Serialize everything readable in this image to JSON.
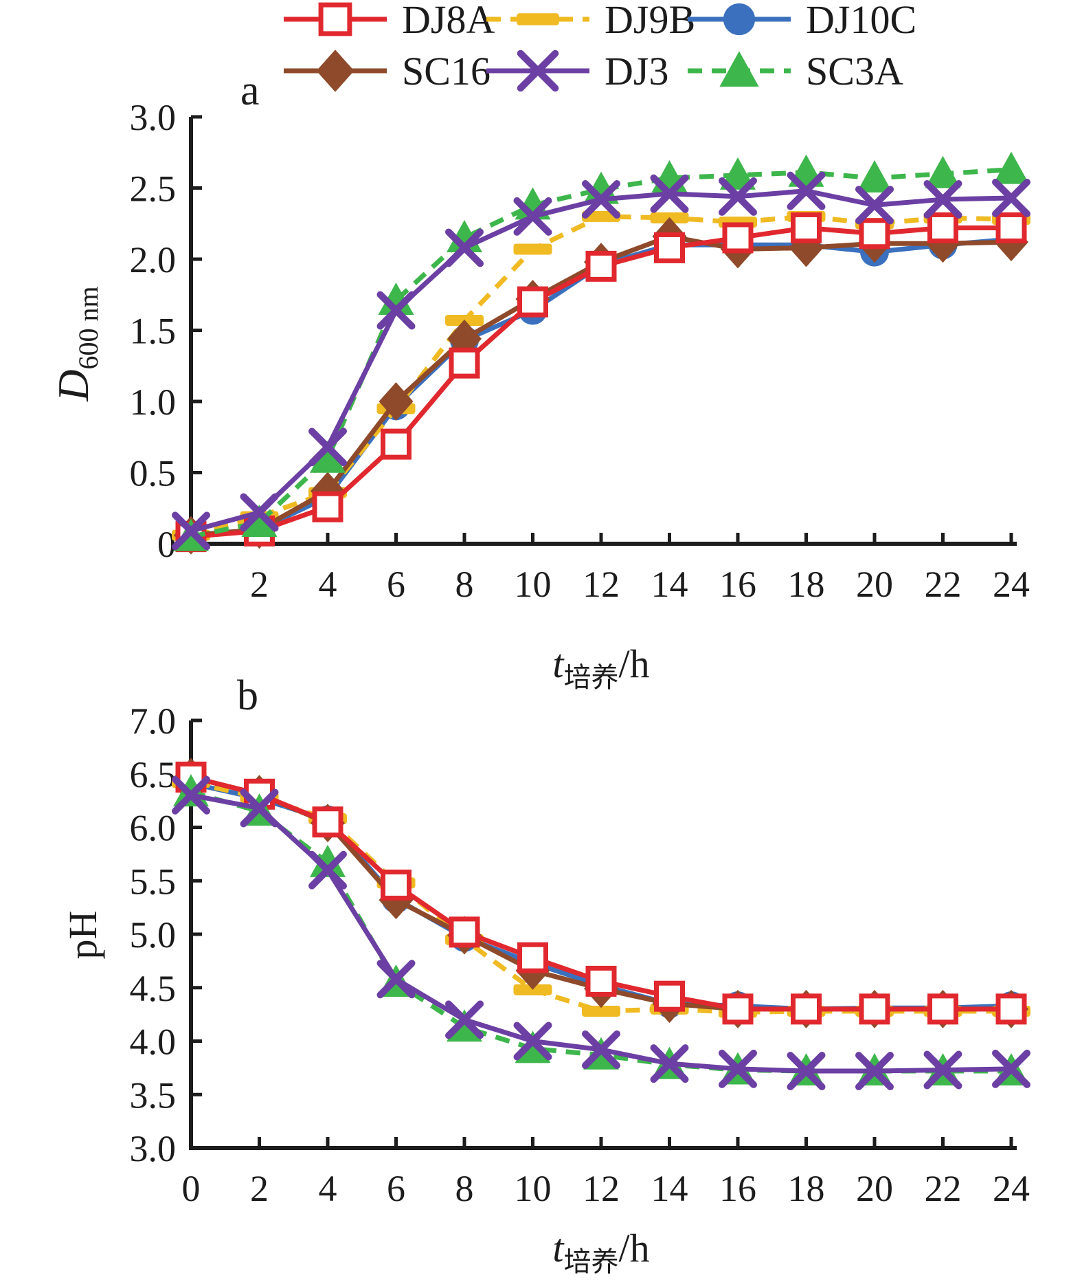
{
  "figure": {
    "panel_a_label": "a",
    "panel_b_label": "b",
    "xlabel_main": "t",
    "xlabel_sub": "培养",
    "xlabel_unit": "/h",
    "ylabel_a_main": "D",
    "ylabel_a_sub": "600 nm",
    "ylabel_b": "pH",
    "text_color": "#1c1c1c",
    "background": "#ffffff"
  },
  "legend": {
    "rows": [
      [
        "DJ8A",
        "DJ9B",
        "DJ10C"
      ],
      [
        "SC16",
        "DJ3",
        "SC3A"
      ]
    ]
  },
  "series_styles": {
    "DJ8A": {
      "color": "#e0282e",
      "marker": "square-open",
      "line": "solid"
    },
    "DJ9B": {
      "color": "#efba22",
      "marker": "dash",
      "line": "dashed"
    },
    "DJ10C": {
      "color": "#3a70bd",
      "marker": "circle",
      "line": "solid"
    },
    "SC16": {
      "color": "#8e4a2a",
      "marker": "diamond",
      "line": "solid"
    },
    "DJ3": {
      "color": "#6b3fa3",
      "marker": "x",
      "line": "solid"
    },
    "SC3A": {
      "color": "#3db64b",
      "marker": "triangle",
      "line": "dashed"
    }
  },
  "chart_data": [
    {
      "id": "a",
      "type": "line",
      "title": "a",
      "xlabel": "t培养/h",
      "ylabel": "D600 nm",
      "xlim": [
        0,
        24
      ],
      "ylim": [
        0,
        3.0
      ],
      "x": [
        0,
        2,
        4,
        6,
        8,
        10,
        12,
        14,
        16,
        18,
        20,
        22,
        24
      ],
      "xticks": [
        0,
        2,
        4,
        6,
        8,
        10,
        12,
        14,
        16,
        18,
        20,
        22,
        24
      ],
      "xtick_labels": [
        "",
        "2",
        "4",
        "6",
        "8",
        "10",
        "12",
        "14",
        "16",
        "18",
        "20",
        "22",
        "24"
      ],
      "yticks": [
        0,
        0.5,
        1.0,
        1.5,
        2.0,
        2.5,
        3.0
      ],
      "ytick_labels": [
        "0",
        "0.5",
        "1.0",
        "1.5",
        "2.0",
        "2.5",
        "3.0"
      ],
      "grid": false,
      "legend_position": "top",
      "series": [
        {
          "name": "DJ10C",
          "values": [
            0.05,
            0.1,
            0.33,
            0.97,
            1.43,
            1.64,
            1.96,
            2.1,
            2.1,
            2.1,
            2.05,
            2.1,
            2.14
          ]
        },
        {
          "name": "DJ9B",
          "values": [
            0.06,
            0.19,
            0.36,
            0.95,
            1.57,
            2.07,
            2.3,
            2.29,
            2.26,
            2.3,
            2.25,
            2.29,
            2.28
          ]
        },
        {
          "name": "SC16",
          "values": [
            0.06,
            0.1,
            0.37,
            1.0,
            1.44,
            1.72,
            1.98,
            2.16,
            2.07,
            2.08,
            2.11,
            2.11,
            2.12
          ]
        },
        {
          "name": "DJ8A",
          "values": [
            0.05,
            0.09,
            0.26,
            0.7,
            1.27,
            1.7,
            1.95,
            2.08,
            2.15,
            2.22,
            2.18,
            2.22,
            2.22
          ]
        },
        {
          "name": "SC3A",
          "values": [
            0.05,
            0.15,
            0.6,
            1.71,
            2.15,
            2.38,
            2.49,
            2.57,
            2.59,
            2.61,
            2.57,
            2.6,
            2.63
          ]
        },
        {
          "name": "DJ3",
          "values": [
            0.09,
            0.22,
            0.68,
            1.64,
            2.08,
            2.3,
            2.42,
            2.46,
            2.44,
            2.48,
            2.38,
            2.42,
            2.43
          ]
        }
      ]
    },
    {
      "id": "b",
      "type": "line",
      "title": "b",
      "xlabel": "t培养/h",
      "ylabel": "pH",
      "xlim": [
        0,
        24
      ],
      "ylim": [
        3.0,
        7.0
      ],
      "x": [
        0,
        2,
        4,
        6,
        8,
        10,
        12,
        14,
        16,
        18,
        20,
        22,
        24
      ],
      "xticks": [
        0,
        2,
        4,
        6,
        8,
        10,
        12,
        14,
        16,
        18,
        20,
        22,
        24
      ],
      "xtick_labels": [
        "0",
        "2",
        "4",
        "6",
        "8",
        "10",
        "12",
        "14",
        "16",
        "18",
        "20",
        "22",
        "24"
      ],
      "yticks": [
        3.0,
        3.5,
        4.0,
        4.5,
        5.0,
        5.5,
        6.0,
        6.5,
        7.0
      ],
      "ytick_labels": [
        "3.0",
        "3.5",
        "4.0",
        "4.5",
        "5.0",
        "5.5",
        "6.0",
        "6.5",
        "7.0"
      ],
      "grid": false,
      "legend_position": "top",
      "series": [
        {
          "name": "DJ10C",
          "values": [
            6.41,
            6.27,
            6.07,
            5.33,
            4.97,
            4.73,
            4.52,
            4.35,
            4.33,
            4.3,
            4.31,
            4.31,
            4.33
          ]
        },
        {
          "name": "DJ9B",
          "values": [
            6.42,
            6.28,
            6.08,
            5.48,
            4.95,
            4.48,
            4.28,
            4.3,
            4.27,
            4.28,
            4.28,
            4.28,
            4.28
          ]
        },
        {
          "name": "SC16",
          "values": [
            6.47,
            6.31,
            6.04,
            5.32,
            4.99,
            4.66,
            4.49,
            4.35,
            4.3,
            4.3,
            4.3,
            4.3,
            4.3
          ]
        },
        {
          "name": "DJ8A",
          "values": [
            6.47,
            6.31,
            6.05,
            5.46,
            5.02,
            4.78,
            4.56,
            4.42,
            4.3,
            4.3,
            4.3,
            4.3,
            4.3
          ]
        },
        {
          "name": "SC3A",
          "values": [
            6.33,
            6.15,
            5.67,
            4.55,
            4.13,
            3.93,
            3.87,
            3.78,
            3.73,
            3.72,
            3.72,
            3.72,
            3.72
          ]
        },
        {
          "name": "DJ3",
          "values": [
            6.3,
            6.18,
            5.6,
            4.58,
            4.2,
            4.0,
            3.92,
            3.79,
            3.74,
            3.72,
            3.72,
            3.73,
            3.74
          ]
        }
      ]
    }
  ]
}
